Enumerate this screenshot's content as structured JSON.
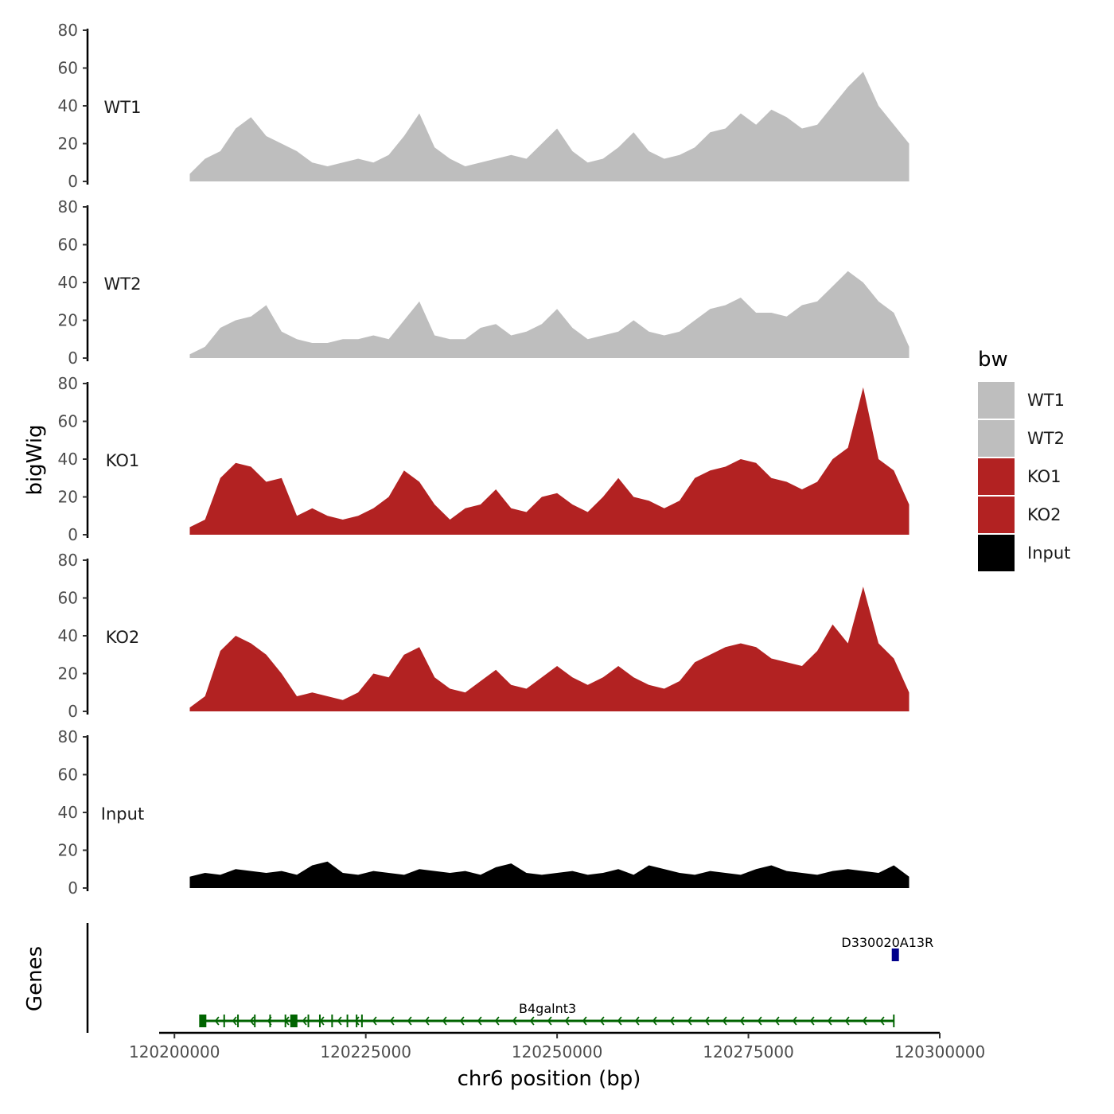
{
  "chart_data": {
    "type": "area",
    "title": "",
    "ylabel": "bigWig",
    "xlabel": "chr6 position (bp)",
    "genes_label": "Genes",
    "xlim": [
      120198000,
      120300000
    ],
    "x_ticks": [
      {
        "value": 120200000,
        "label": "120200000"
      },
      {
        "value": 120225000,
        "label": "120225000"
      },
      {
        "value": 120250000,
        "label": "120250000"
      },
      {
        "value": 120275000,
        "label": "120275000"
      },
      {
        "value": 120300000,
        "label": "120300000"
      }
    ],
    "ylim": [
      0,
      80
    ],
    "y_ticks": [
      {
        "value": 0,
        "label": "0"
      },
      {
        "value": 20,
        "label": "20"
      },
      {
        "value": 40,
        "label": "40"
      },
      {
        "value": 60,
        "label": "60"
      },
      {
        "value": 80,
        "label": "80"
      }
    ],
    "legend": {
      "title": "bw",
      "position": "right",
      "entries": [
        {
          "label": "WT1",
          "color": "#bebebe"
        },
        {
          "label": "WT2",
          "color": "#bebebe"
        },
        {
          "label": "KO1",
          "color": "#b22222"
        },
        {
          "label": "KO2",
          "color": "#b22222"
        },
        {
          "label": "Input",
          "color": "#000000"
        }
      ]
    },
    "tracks": [
      {
        "name": "WT1",
        "color": "#bebebe",
        "x": [
          120202000,
          120204000,
          120206000,
          120208000,
          120210000,
          120212000,
          120214000,
          120216000,
          120218000,
          120220000,
          120222000,
          120224000,
          120226000,
          120228000,
          120230000,
          120232000,
          120234000,
          120236000,
          120238000,
          120240000,
          120242000,
          120244000,
          120246000,
          120248000,
          120250000,
          120252000,
          120254000,
          120256000,
          120258000,
          120260000,
          120262000,
          120264000,
          120266000,
          120268000,
          120270000,
          120272000,
          120274000,
          120276000,
          120278000,
          120280000,
          120282000,
          120284000,
          120286000,
          120288000,
          120290000,
          120292000,
          120294000,
          120296000
        ],
        "y": [
          4,
          12,
          16,
          28,
          34,
          24,
          20,
          16,
          10,
          8,
          10,
          12,
          10,
          14,
          24,
          36,
          18,
          12,
          8,
          10,
          12,
          14,
          12,
          20,
          28,
          16,
          10,
          12,
          18,
          26,
          16,
          12,
          14,
          18,
          26,
          28,
          36,
          30,
          38,
          34,
          28,
          30,
          40,
          50,
          58,
          40,
          30,
          20
        ]
      },
      {
        "name": "WT2",
        "color": "#bebebe",
        "x": [
          120202000,
          120204000,
          120206000,
          120208000,
          120210000,
          120212000,
          120214000,
          120216000,
          120218000,
          120220000,
          120222000,
          120224000,
          120226000,
          120228000,
          120230000,
          120232000,
          120234000,
          120236000,
          120238000,
          120240000,
          120242000,
          120244000,
          120246000,
          120248000,
          120250000,
          120252000,
          120254000,
          120256000,
          120258000,
          120260000,
          120262000,
          120264000,
          120266000,
          120268000,
          120270000,
          120272000,
          120274000,
          120276000,
          120278000,
          120280000,
          120282000,
          120284000,
          120286000,
          120288000,
          120290000,
          120292000,
          120294000,
          120296000
        ],
        "y": [
          2,
          6,
          16,
          20,
          22,
          28,
          14,
          10,
          8,
          8,
          10,
          10,
          12,
          10,
          20,
          30,
          12,
          10,
          10,
          16,
          18,
          12,
          14,
          18,
          26,
          16,
          10,
          12,
          14,
          20,
          14,
          12,
          14,
          20,
          26,
          28,
          32,
          24,
          24,
          22,
          28,
          30,
          38,
          46,
          40,
          30,
          24,
          6
        ]
      },
      {
        "name": "KO1",
        "color": "#b22222",
        "x": [
          120202000,
          120204000,
          120206000,
          120208000,
          120210000,
          120212000,
          120214000,
          120216000,
          120218000,
          120220000,
          120222000,
          120224000,
          120226000,
          120228000,
          120230000,
          120232000,
          120234000,
          120236000,
          120238000,
          120240000,
          120242000,
          120244000,
          120246000,
          120248000,
          120250000,
          120252000,
          120254000,
          120256000,
          120258000,
          120260000,
          120262000,
          120264000,
          120266000,
          120268000,
          120270000,
          120272000,
          120274000,
          120276000,
          120278000,
          120280000,
          120282000,
          120284000,
          120286000,
          120288000,
          120290000,
          120292000,
          120294000,
          120296000
        ],
        "y": [
          4,
          8,
          30,
          38,
          36,
          28,
          30,
          10,
          14,
          10,
          8,
          10,
          14,
          20,
          34,
          28,
          16,
          8,
          14,
          16,
          24,
          14,
          12,
          20,
          22,
          16,
          12,
          20,
          30,
          20,
          18,
          14,
          18,
          30,
          34,
          36,
          40,
          38,
          30,
          28,
          24,
          28,
          40,
          46,
          78,
          40,
          34,
          16
        ]
      },
      {
        "name": "KO2",
        "color": "#b22222",
        "x": [
          120202000,
          120204000,
          120206000,
          120208000,
          120210000,
          120212000,
          120214000,
          120216000,
          120218000,
          120220000,
          120222000,
          120224000,
          120226000,
          120228000,
          120230000,
          120232000,
          120234000,
          120236000,
          120238000,
          120240000,
          120242000,
          120244000,
          120246000,
          120248000,
          120250000,
          120252000,
          120254000,
          120256000,
          120258000,
          120260000,
          120262000,
          120264000,
          120266000,
          120268000,
          120270000,
          120272000,
          120274000,
          120276000,
          120278000,
          120280000,
          120282000,
          120284000,
          120286000,
          120288000,
          120290000,
          120292000,
          120294000,
          120296000
        ],
        "y": [
          2,
          8,
          32,
          40,
          36,
          30,
          20,
          8,
          10,
          8,
          6,
          10,
          20,
          18,
          30,
          34,
          18,
          12,
          10,
          16,
          22,
          14,
          12,
          18,
          24,
          18,
          14,
          18,
          24,
          18,
          14,
          12,
          16,
          26,
          30,
          34,
          36,
          34,
          28,
          26,
          24,
          32,
          46,
          36,
          66,
          36,
          28,
          10
        ]
      },
      {
        "name": "Input",
        "color": "#000000",
        "x": [
          120202000,
          120204000,
          120206000,
          120208000,
          120210000,
          120212000,
          120214000,
          120216000,
          120218000,
          120220000,
          120222000,
          120224000,
          120226000,
          120228000,
          120230000,
          120232000,
          120234000,
          120236000,
          120238000,
          120240000,
          120242000,
          120244000,
          120246000,
          120248000,
          120250000,
          120252000,
          120254000,
          120256000,
          120258000,
          120260000,
          120262000,
          120264000,
          120266000,
          120268000,
          120270000,
          120272000,
          120274000,
          120276000,
          120278000,
          120280000,
          120282000,
          120284000,
          120286000,
          120288000,
          120290000,
          120292000,
          120294000,
          120296000
        ],
        "y": [
          6,
          8,
          7,
          10,
          9,
          8,
          9,
          7,
          12,
          14,
          8,
          7,
          9,
          8,
          7,
          10,
          9,
          8,
          9,
          7,
          11,
          13,
          8,
          7,
          8,
          9,
          7,
          8,
          10,
          7,
          12,
          10,
          8,
          7,
          9,
          8,
          7,
          10,
          12,
          9,
          8,
          7,
          9,
          10,
          9,
          8,
          12,
          6
        ]
      }
    ],
    "genes": [
      {
        "name": "B4galnt3",
        "start": 120203500,
        "end": 120294000,
        "strand": "-",
        "color": "#006400",
        "exons": [
          120203700,
          120206500,
          120208300,
          120210500,
          120212500,
          120214500,
          120215600,
          120217500,
          120219000,
          120220600,
          120222600,
          120223800,
          120224500
        ]
      },
      {
        "name": "D330020A13R",
        "start": 120294000,
        "end": 120294600,
        "strand": "+",
        "color": "#00008b",
        "exons": [
          120294200
        ]
      }
    ]
  }
}
